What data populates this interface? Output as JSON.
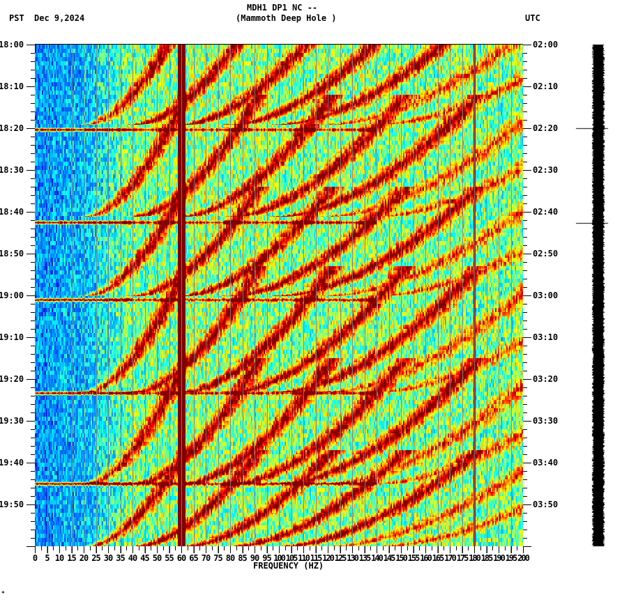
{
  "header": {
    "station_title": "MDH1 DP1 NC --",
    "station_name": "(Mammoth Deep Hole )",
    "left_tz": "PST",
    "date": "Dec 9,2024",
    "right_tz": "UTC"
  },
  "footer": {
    "mark": "*"
  },
  "chart_data": {
    "type": "heatmap",
    "subtype": "spectrogram",
    "title": "MDH1 DP1 NC -- (Mammoth Deep Hole )",
    "xlabel": "FREQUENCY (HZ)",
    "ylabel_left": "PST",
    "ylabel_right": "UTC",
    "date": "Dec 9,2024",
    "xlim": [
      0,
      200
    ],
    "x_ticks": [
      0,
      5,
      10,
      15,
      20,
      25,
      30,
      35,
      40,
      45,
      50,
      55,
      60,
      65,
      70,
      75,
      80,
      85,
      90,
      95,
      100,
      105,
      110,
      115,
      120,
      125,
      130,
      135,
      140,
      145,
      150,
      155,
      160,
      165,
      170,
      175,
      180,
      185,
      190,
      195,
      200
    ],
    "x_tick_labels": [
      "0",
      "5",
      "10",
      "15",
      "20",
      "25",
      "30",
      "35",
      "40",
      "45",
      "50",
      "55",
      "60",
      "65",
      "70",
      "75",
      "80",
      "85",
      "90",
      "95",
      "100",
      "105",
      "110",
      "115",
      "120",
      "125",
      "130",
      "135",
      "140",
      "145",
      "150",
      "155",
      "160",
      "165",
      "170",
      "175",
      "180",
      "185",
      "190",
      "195",
      "200"
    ],
    "y_range_minutes": 120,
    "y_ticks_left": [
      "18:00",
      "18:10",
      "18:20",
      "18:30",
      "18:40",
      "18:50",
      "19:00",
      "19:10",
      "19:20",
      "19:30",
      "19:40",
      "19:50"
    ],
    "y_ticks_right": [
      "02:00",
      "02:10",
      "02:20",
      "02:30",
      "02:40",
      "02:50",
      "03:00",
      "03:10",
      "03:20",
      "03:30",
      "03:40",
      "03:50"
    ],
    "minor_tick_interval_min": 2,
    "grid": "vertical gray lines every 5 Hz",
    "colormap": [
      "#0000c8",
      "#0060ff",
      "#00a0ff",
      "#00ffff",
      "#80ff80",
      "#ffff00",
      "#ff8000",
      "#ff0000",
      "#800000"
    ],
    "persistent_lines_hz": [
      {
        "freq": 60,
        "strength": "very strong",
        "color": "#800000"
      },
      {
        "freq": 180,
        "strength": "moderate",
        "color": "#800000"
      }
    ],
    "chirp_cycles": [
      {
        "start_min": 0,
        "end_min": 19,
        "note": "repeating harmonic chirp, decreasing frequency"
      },
      {
        "start_min": 20,
        "end_min": 41
      },
      {
        "start_min": 42,
        "end_min": 60
      },
      {
        "start_min": 61,
        "end_min": 83
      },
      {
        "start_min": 83,
        "end_min": 105
      },
      {
        "start_min": 105,
        "end_min": 120
      }
    ],
    "broadband_events_min": [
      20.3,
      42.5,
      61,
      83.3,
      105
    ],
    "harmonic_fundamentals_hz_at_cycle_end": [
      22,
      42,
      62,
      82,
      102,
      122
    ],
    "spectral_trend": "low energy (blue) below ~25 Hz, high energy (red) bands 25-130 Hz, mid energy (green/yellow) 130-200 Hz"
  },
  "trace": {
    "label": "seismogram-trace",
    "marker_times_min": [
      20,
      42.7
    ]
  }
}
